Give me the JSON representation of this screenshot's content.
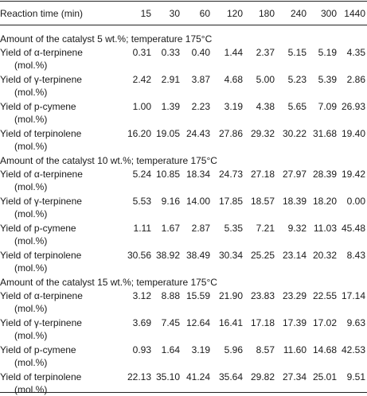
{
  "header": {
    "first": "Reaction time (min)",
    "times": [
      "15",
      "30",
      "60",
      "120",
      "180",
      "240",
      "300",
      "1440"
    ]
  },
  "sections": [
    {
      "title": "Amount of the catalyst 5 wt.%; temperature 175°C",
      "rows": [
        {
          "label1": "Yield of α-terpinene",
          "label2": "(mol.%)",
          "values": [
            "0.31",
            "0.33",
            "0.40",
            "1.44",
            "2.37",
            "5.15",
            "5.19",
            "4.35"
          ]
        },
        {
          "label1": "Yield of γ-terpinene",
          "label2": "(mol.%)",
          "values": [
            "2.42",
            "2.91",
            "3.87",
            "4.68",
            "5.00",
            "5.23",
            "5.39",
            "2.86"
          ]
        },
        {
          "label1": "Yield of p-cymene",
          "label2": "(mol.%)",
          "values": [
            "1.00",
            "1.39",
            "2.23",
            "3.19",
            "4.38",
            "5.65",
            "7.09",
            "26.93"
          ]
        },
        {
          "label1": "Yield of terpinolene",
          "label2": "(mol.%)",
          "values": [
            "16.20",
            "19.05",
            "24.43",
            "27.86",
            "29.32",
            "30.22",
            "31.68",
            "19.40"
          ]
        }
      ]
    },
    {
      "title": "Amount of the catalyst 10 wt.%; temperature 175°C",
      "rows": [
        {
          "label1": "Yield of α-terpinene",
          "label2": "(mol.%)",
          "values": [
            "5.24",
            "10.85",
            "18.34",
            "24.73",
            "27.18",
            "27.97",
            "28.39",
            "19.42"
          ]
        },
        {
          "label1": "Yield of γ-terpinene",
          "label2": "(mol.%)",
          "values": [
            "5.53",
            "9.16",
            "14.00",
            "17.85",
            "18.57",
            "18.39",
            "18.20",
            "0.00"
          ]
        },
        {
          "label1": "Yield of p-cymene",
          "label2": "(mol.%)",
          "values": [
            "1.11",
            "1.67",
            "2.87",
            "5.35",
            "7.21",
            "9.32",
            "11.03",
            "45.48"
          ]
        },
        {
          "label1": "Yield of terpinolene",
          "label2": "(mol.%)",
          "values": [
            "30.56",
            "38.92",
            "38.49",
            "30.34",
            "25.25",
            "23.14",
            "20.32",
            "8.43"
          ]
        }
      ]
    },
    {
      "title": "Amount of the catalyst 15 wt.%; temperature 175°C",
      "rows": [
        {
          "label1": "Yield of α-terpinene",
          "label2": "(mol.%)",
          "values": [
            "3.12",
            "8.88",
            "15.59",
            "21.90",
            "23.83",
            "23.29",
            "22.55",
            "17.14"
          ]
        },
        {
          "label1": "Yield of γ-terpinene",
          "label2": "(mol.%)",
          "values": [
            "3.69",
            "7.45",
            "12.64",
            "16.41",
            "17.18",
            "17.39",
            "17.02",
            "9.63"
          ]
        },
        {
          "label1": "Yield of p-cymene",
          "label2": "(mol.%)",
          "values": [
            "0.93",
            "1.64",
            "3.19",
            "5.96",
            "8.57",
            "11.60",
            "14.68",
            "42.53"
          ]
        },
        {
          "label1": "Yield of terpinolene",
          "label2": "(mol.%)",
          "values": [
            "22.13",
            "35.10",
            "41.24",
            "35.64",
            "29.82",
            "27.34",
            "25.01",
            "9.51"
          ]
        }
      ]
    }
  ]
}
